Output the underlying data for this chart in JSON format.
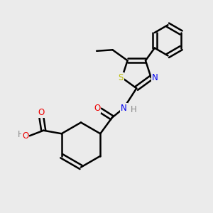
{
  "background_color": "#ebebeb",
  "bond_color": "#000000",
  "bond_width": 1.8,
  "atom_colors": {
    "N": "#0000ee",
    "O": "#ee0000",
    "S": "#bbbb00",
    "H": "#888888",
    "C": "#000000"
  },
  "font_size": 8.5
}
